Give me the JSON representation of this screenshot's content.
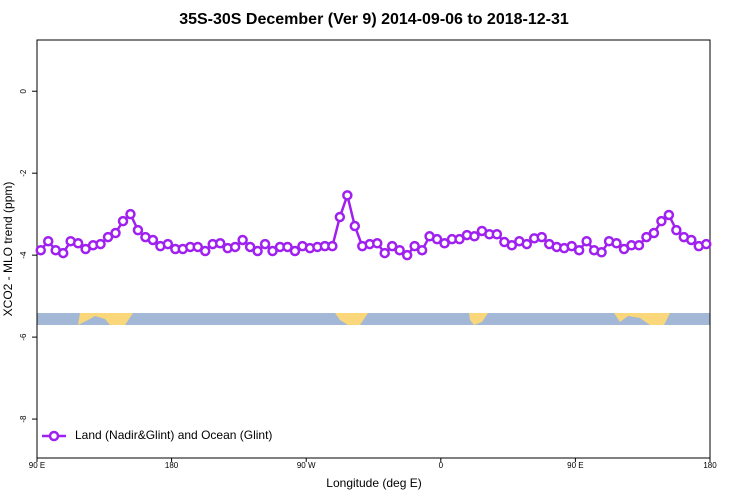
{
  "chart_data": {
    "type": "line",
    "title": "35S-30S December (Ver 9)   2014-09-06 to 2018-12-31",
    "xlabel": "Longitude (deg E)",
    "ylabel": "XCO2 - MLO trend (ppm)",
    "xlim": [
      90,
      540
    ],
    "ylim": [
      -8.95,
      1.25
    ],
    "xticks": [
      {
        "value": 90,
        "label": "90 E"
      },
      180,
      {
        "value": 270,
        "label": "90 W"
      },
      {
        "value": 360,
        "label": "0"
      },
      {
        "value": 450,
        "label": "90 E"
      },
      {
        "value": 540,
        "label": "180"
      }
    ],
    "yticks": [
      0,
      -2,
      -4,
      -6,
      -8
    ],
    "legend": "bottom-left",
    "x": [
      92.5,
      97.5,
      102.5,
      107.5,
      112.5,
      117.5,
      122.5,
      127.5,
      132.5,
      137.5,
      142.5,
      147.5,
      152.5,
      157.5,
      162.5,
      167.5,
      172.5,
      177.5,
      182.5,
      187.5,
      192.5,
      197.5,
      202.5,
      207.5,
      212.5,
      217.5,
      222.5,
      227.5,
      232.5,
      237.5,
      242.5,
      247.5,
      252.5,
      257.5,
      262.5,
      267.5,
      272.5,
      277.5,
      282.5,
      287.5,
      292.5,
      297.5,
      302.5,
      307.5,
      312.5,
      317.5,
      322.5,
      327.5,
      332.5,
      337.5,
      342.5,
      347.5,
      352.5,
      357.5,
      362.5,
      367.5,
      372.5,
      377.5,
      382.5,
      387.5,
      392.5,
      397.5,
      402.5,
      407.5,
      412.5,
      417.5,
      422.5,
      427.5,
      432.5,
      437.5,
      442.5,
      447.5,
      452.5,
      457.5,
      462.5,
      467.5,
      472.5,
      477.5,
      482.5,
      487.5,
      492.5,
      497.5,
      502.5,
      507.5,
      512.5,
      517.5,
      522.5,
      527.5,
      532.5,
      537.5
    ],
    "series": [
      {
        "name": "Land (Nadir&Glint) and Ocean (Glint)",
        "color": "#a020f0",
        "values": [
          -3.88,
          -3.66,
          -3.88,
          -3.95,
          -3.66,
          -3.71,
          -3.85,
          -3.76,
          -3.73,
          -3.56,
          -3.46,
          -3.17,
          -3.0,
          -3.39,
          -3.56,
          -3.63,
          -3.78,
          -3.73,
          -3.85,
          -3.85,
          -3.8,
          -3.8,
          -3.9,
          -3.73,
          -3.71,
          -3.83,
          -3.8,
          -3.63,
          -3.8,
          -3.9,
          -3.73,
          -3.9,
          -3.8,
          -3.8,
          -3.9,
          -3.78,
          -3.83,
          -3.8,
          -3.78,
          -3.78,
          -3.07,
          -2.54,
          -3.29,
          -3.78,
          -3.73,
          -3.71,
          -3.95,
          -3.78,
          -3.88,
          -4.0,
          -3.78,
          -3.88,
          -3.54,
          -3.61,
          -3.71,
          -3.61,
          -3.61,
          -3.51,
          -3.54,
          -3.41,
          -3.49,
          -3.49,
          -3.68,
          -3.76,
          -3.66,
          -3.73,
          -3.59,
          -3.56,
          -3.73,
          -3.8,
          -3.83,
          -3.78,
          -3.88,
          -3.66,
          -3.88,
          -3.93,
          -3.66,
          -3.71,
          -3.85,
          -3.76,
          -3.76,
          -3.56,
          -3.46,
          -3.17,
          -3.02,
          -3.39,
          -3.56,
          -3.63,
          -3.78,
          -3.73
        ]
      }
    ]
  }
}
